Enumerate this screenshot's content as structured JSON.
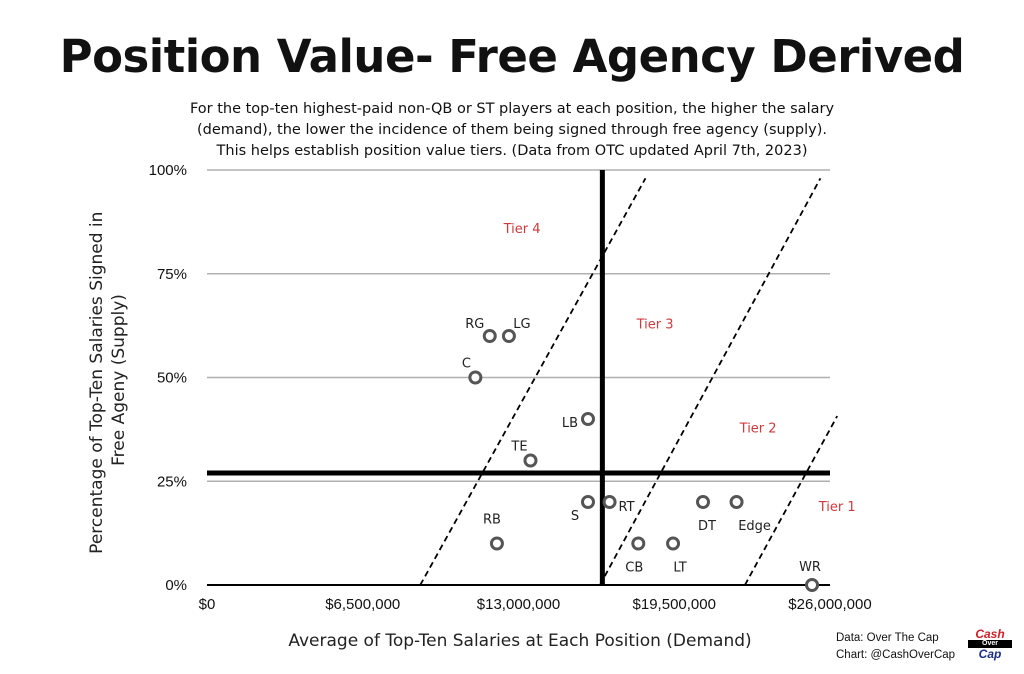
{
  "chart_data": {
    "type": "scatter",
    "title": "Position Value- Free Agency Derived",
    "subtitle": [
      "For the top-ten highest-paid non-QB or ST players at each position, the higher the salary",
      "(demand), the lower the incidence of them being signed through free agency (supply).",
      "This helps establish position value tiers. (Data from OTC updated April 7th, 2023)"
    ],
    "xlabel": "Average of Top-Ten Salaries at Each Position (Demand)",
    "ylabel": [
      "Percentage of Top-Ten  Salaries Signed in",
      "Free Ageny (Supply)"
    ],
    "xlim": [
      0,
      26000000
    ],
    "ylim": [
      0,
      100
    ],
    "x_ticks": [
      {
        "value": 0,
        "label": "$0"
      },
      {
        "value": 6500000,
        "label": "$6,500,000"
      },
      {
        "value": 13000000,
        "label": "$13,000,000"
      },
      {
        "value": 19500000,
        "label": "$19,500,000"
      },
      {
        "value": 26000000,
        "label": "$26,000,000"
      }
    ],
    "y_ticks": [
      {
        "value": 0,
        "label": "0%"
      },
      {
        "value": 25,
        "label": "25%"
      },
      {
        "value": 50,
        "label": "50%"
      },
      {
        "value": 75,
        "label": "75%"
      },
      {
        "value": 100,
        "label": "100%"
      }
    ],
    "grid": "horizontal",
    "points": [
      {
        "label": "RG",
        "x": 11800000,
        "y": 60
      },
      {
        "label": "LG",
        "x": 12600000,
        "y": 60
      },
      {
        "label": "C",
        "x": 11200000,
        "y": 50
      },
      {
        "label": "LB",
        "x": 15900000,
        "y": 40
      },
      {
        "label": "TE",
        "x": 13500000,
        "y": 30
      },
      {
        "label": "S",
        "x": 15900000,
        "y": 20
      },
      {
        "label": "RT",
        "x": 16800000,
        "y": 20
      },
      {
        "label": "DT",
        "x": 20700000,
        "y": 20
      },
      {
        "label": "Edge",
        "x": 22100000,
        "y": 20
      },
      {
        "label": "RB",
        "x": 12100000,
        "y": 10
      },
      {
        "label": "CB",
        "x": 18000000,
        "y": 10
      },
      {
        "label": "LT",
        "x": 19450000,
        "y": 10
      },
      {
        "label": "WR",
        "x": 25250000,
        "y": 0
      }
    ],
    "reference_lines": {
      "vertical_x": 16500000,
      "horizontal_y": 27
    },
    "tier_boundaries": [
      {
        "from": [
          8900000,
          0
        ],
        "to": [
          18300000,
          98
        ]
      },
      {
        "from": [
          16400000,
          0
        ],
        "to": [
          25600000,
          98
        ]
      },
      {
        "from": [
          22450000,
          0
        ],
        "to": [
          26300000,
          40.7
        ]
      }
    ],
    "tiers": [
      {
        "label": "Tier 4",
        "x": 13150000,
        "y": 86
      },
      {
        "label": "Tier 3",
        "x": 18700000,
        "y": 63
      },
      {
        "label": "Tier 2",
        "x": 23000000,
        "y": 38
      },
      {
        "label": "Tier 1",
        "x": 26300000,
        "y": 19
      }
    ],
    "colors": {
      "marker": "#555555",
      "tier_text": "#d0393b",
      "grid": "#b0b0b0"
    }
  },
  "credits": {
    "line1": "Data: Over The Cap",
    "line2": "Chart: @CashOverCap"
  },
  "logo": {
    "line1": "Cash",
    "line2": "Over",
    "line3": "Cap"
  }
}
